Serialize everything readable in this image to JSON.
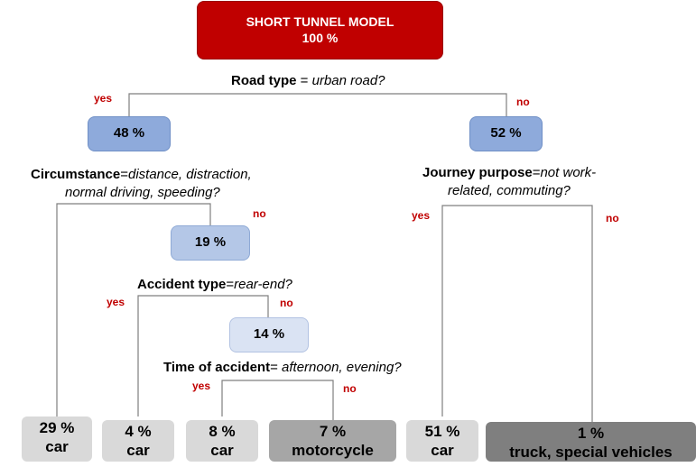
{
  "root": {
    "title": "SHORT TUNNEL MODEL",
    "value": "100 %"
  },
  "questions": {
    "road_type": {
      "key": "Road type",
      "op": " = ",
      "value": "urban road?"
    },
    "circumstance": {
      "key": "Circumstance",
      "op": "=",
      "value_line1": "distance, distraction,",
      "value_line2": "normal driving, speeding?"
    },
    "journey_purpose": {
      "key": "Journey purpose",
      "op": "=",
      "value_line1": "not work-",
      "value_line2": "related, commuting?"
    },
    "accident_type": {
      "key": "Accident type",
      "op": "=",
      "value": "rear-end?"
    },
    "time_of_accident": {
      "key": "Time of accident",
      "op": "= ",
      "value": "afternoon, evening?"
    }
  },
  "nodes": {
    "urban_yes": "48 %",
    "urban_no": "52 %",
    "circ_no": "19 %",
    "rear_no": "14 %"
  },
  "leaves": [
    {
      "pct": "29 %",
      "label": "car"
    },
    {
      "pct": "4 %",
      "label": "car"
    },
    {
      "pct": "8 %",
      "label": "car"
    },
    {
      "pct": "7 %",
      "label": "motorcycle"
    },
    {
      "pct": "51 %",
      "label": "car"
    },
    {
      "pct": "1 %",
      "label": "truck, special vehicles"
    }
  ],
  "branch_labels": {
    "yes": "yes",
    "no": "no"
  }
}
